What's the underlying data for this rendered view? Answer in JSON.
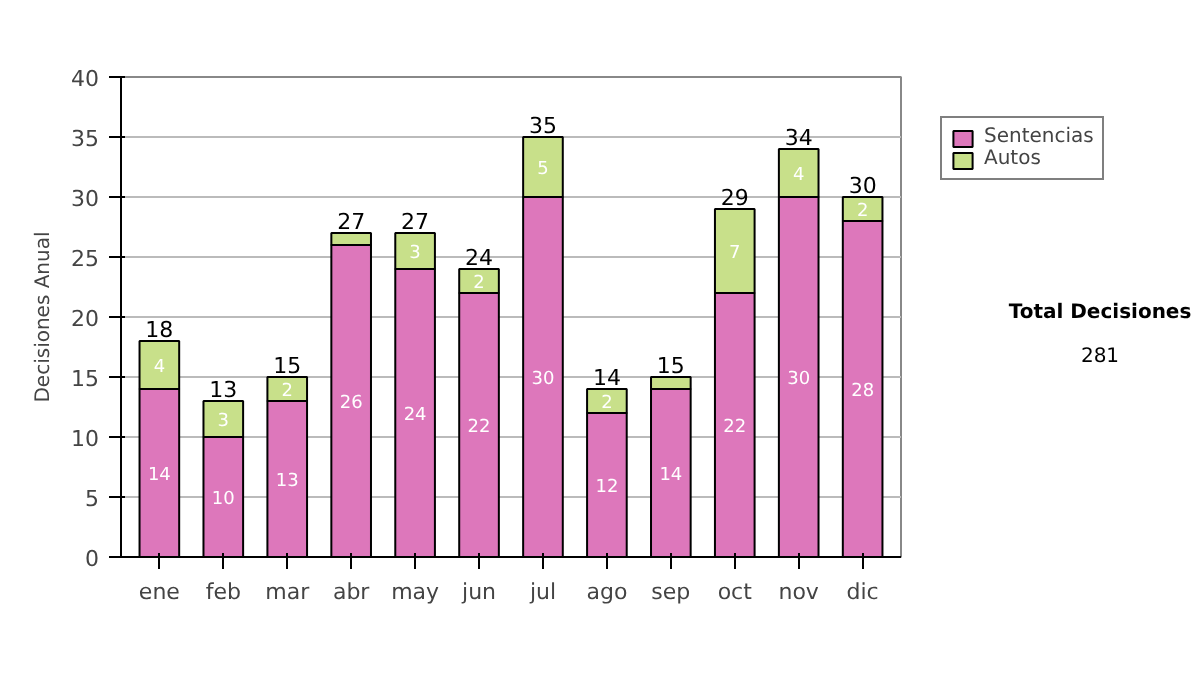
{
  "chart_data": {
    "type": "bar",
    "stacked": true,
    "categories": [
      "ene",
      "feb",
      "mar",
      "abr",
      "may",
      "jun",
      "jul",
      "ago",
      "sep",
      "oct",
      "nov",
      "dic"
    ],
    "series": [
      {
        "name": "Sentencias",
        "color": "#dd77bb",
        "values": [
          14,
          10,
          13,
          26,
          24,
          22,
          30,
          12,
          14,
          22,
          30,
          28
        ],
        "value_labels": [
          "14",
          "10",
          "13",
          "26",
          "24",
          "22",
          "30",
          "12",
          "14",
          "22",
          "30",
          "28"
        ]
      },
      {
        "name": "Autos",
        "color": "#c8e08a",
        "values": [
          4,
          3,
          2,
          1,
          3,
          2,
          5,
          2,
          1,
          7,
          4,
          2
        ],
        "value_labels": [
          "4",
          "3",
          "2",
          null,
          "3",
          "2",
          "5",
          "2",
          null,
          "7",
          "4",
          "2"
        ]
      }
    ],
    "totals": [
      "18",
      "13",
      "15",
      "27",
      "27",
      "24",
      "35",
      "14",
      "15",
      "29",
      "34",
      "30"
    ],
    "ylabel": "Decisiones Anual",
    "ylim": [
      0,
      40
    ],
    "yticks": [
      0,
      5,
      10,
      15,
      20,
      25,
      30,
      35,
      40
    ],
    "grid": "y",
    "legend": "right",
    "annotations": [
      "Total Decisiones",
      "281"
    ]
  }
}
